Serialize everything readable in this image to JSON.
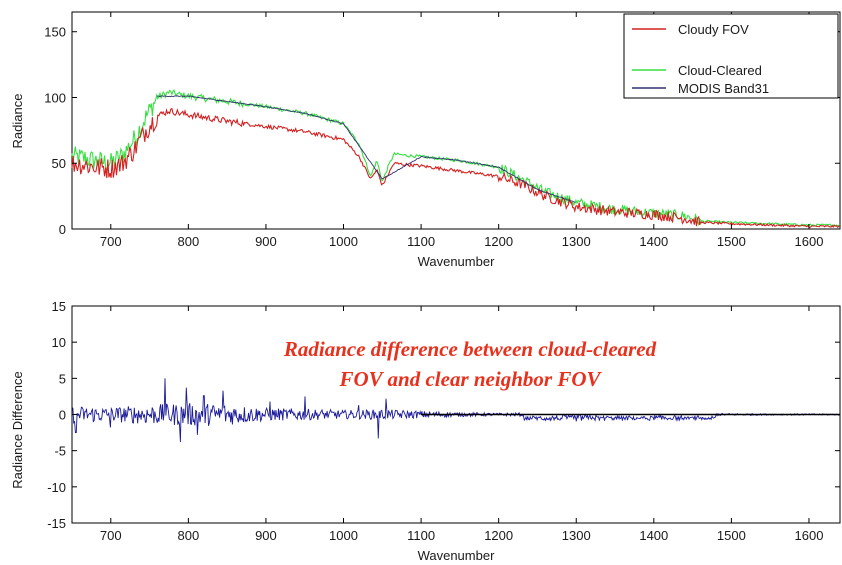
{
  "chart_data": [
    {
      "type": "line",
      "xlabel": "Wavenumber",
      "ylabel": "Radiance",
      "xlim": [
        650,
        1640
      ],
      "ylim": [
        0,
        165
      ],
      "xticks": [
        "700",
        "800",
        "900",
        "1000",
        "1100",
        "1200",
        "1300",
        "1400",
        "1500",
        "1600"
      ],
      "yticks": [
        "0",
        "50",
        "100",
        "150"
      ],
      "grid": false,
      "legend_position": "top-right",
      "series": [
        {
          "name": "Cloudy FOV",
          "color": "#d42020",
          "x": [
            650,
            665,
            680,
            700,
            715,
            730,
            745,
            760,
            775,
            790,
            800,
            850,
            900,
            950,
            1000,
            1020,
            1035,
            1043,
            1050,
            1058,
            1065,
            1080,
            1100,
            1150,
            1200,
            1230,
            1260,
            1300,
            1350,
            1400,
            1440,
            1460,
            1500,
            1550,
            1600,
            1640
          ],
          "y": [
            50,
            49,
            47,
            46,
            50,
            60,
            75,
            86,
            90,
            88,
            87,
            82,
            78,
            74,
            68,
            55,
            38,
            45,
            33,
            42,
            50,
            49,
            48,
            44,
            40,
            34,
            25,
            17,
            13,
            11,
            8,
            5,
            4,
            3,
            2,
            2
          ]
        },
        {
          "name": "Cloud-Cleared",
          "color": "#36e040",
          "x": [
            650,
            665,
            680,
            700,
            715,
            730,
            745,
            760,
            775,
            790,
            800,
            850,
            900,
            950,
            1000,
            1020,
            1035,
            1043,
            1050,
            1058,
            1065,
            1080,
            1100,
            1150,
            1200,
            1230,
            1260,
            1300,
            1350,
            1400,
            1440,
            1460,
            1500,
            1550,
            1600,
            1640
          ],
          "y": [
            55,
            54,
            52,
            50,
            56,
            68,
            85,
            100,
            104,
            102,
            101,
            97,
            93,
            88,
            80,
            65,
            40,
            52,
            36,
            48,
            57,
            56,
            55,
            52,
            47,
            38,
            28,
            20,
            15,
            12,
            10,
            6,
            5,
            4,
            3,
            3
          ]
        },
        {
          "name": "MODIS Band31",
          "color": "#303070",
          "x": [
            760,
            800,
            850,
            900,
            950,
            1000,
            1050,
            1100,
            1150,
            1200,
            1250,
            1300
          ],
          "y": [
            101,
            101,
            97,
            93,
            88,
            80,
            38,
            55,
            52,
            47,
            30,
            20
          ]
        }
      ]
    },
    {
      "type": "line",
      "xlabel": "Wavenumber",
      "ylabel": "Radiance Difference",
      "xlim": [
        650,
        1640
      ],
      "ylim": [
        -15,
        15
      ],
      "xticks": [
        "700",
        "800",
        "900",
        "1000",
        "1100",
        "1200",
        "1300",
        "1400",
        "1500",
        "1600"
      ],
      "yticks": [
        "-15",
        "-10",
        "-5",
        "0",
        "5",
        "10",
        "15"
      ],
      "grid": false,
      "series": [
        {
          "color": "#1a1a9a",
          "noise_profile": {
            "x": [
              650,
              700,
              750,
              800,
              850,
              900,
              950,
              1000,
              1050,
              1100,
              1150,
              1200,
              1250,
              1300,
              1350,
              1400,
              1450,
              1500,
              1550,
              1600,
              1640
            ],
            "amplitude": [
              1.2,
              1.0,
              1.4,
              1.6,
              1.5,
              0.9,
              0.8,
              0.6,
              0.7,
              0.5,
              0.3,
              0.2,
              0.3,
              0.4,
              0.3,
              0.3,
              0.2,
              0.15,
              0.1,
              0.1,
              0.1
            ],
            "spikes": [
              [
                655,
                -2.5
              ],
              [
                700,
                -1.8
              ],
              [
                770,
                5.0
              ],
              [
                790,
                -3.8
              ],
              [
                797,
                3.7
              ],
              [
                812,
                -2.8
              ],
              [
                820,
                2.6
              ],
              [
                845,
                3.3
              ],
              [
                905,
                1.8
              ],
              [
                950,
                2.5
              ],
              [
                1020,
                1.3
              ],
              [
                1045,
                -3.3
              ],
              [
                1055,
                2.2
              ]
            ],
            "offset_region": [
              1230,
              1480,
              -0.6
            ]
          }
        }
      ],
      "annotation": [
        "Radiance difference between cloud-cleared",
        "FOV and clear neighbor FOV"
      ]
    }
  ]
}
